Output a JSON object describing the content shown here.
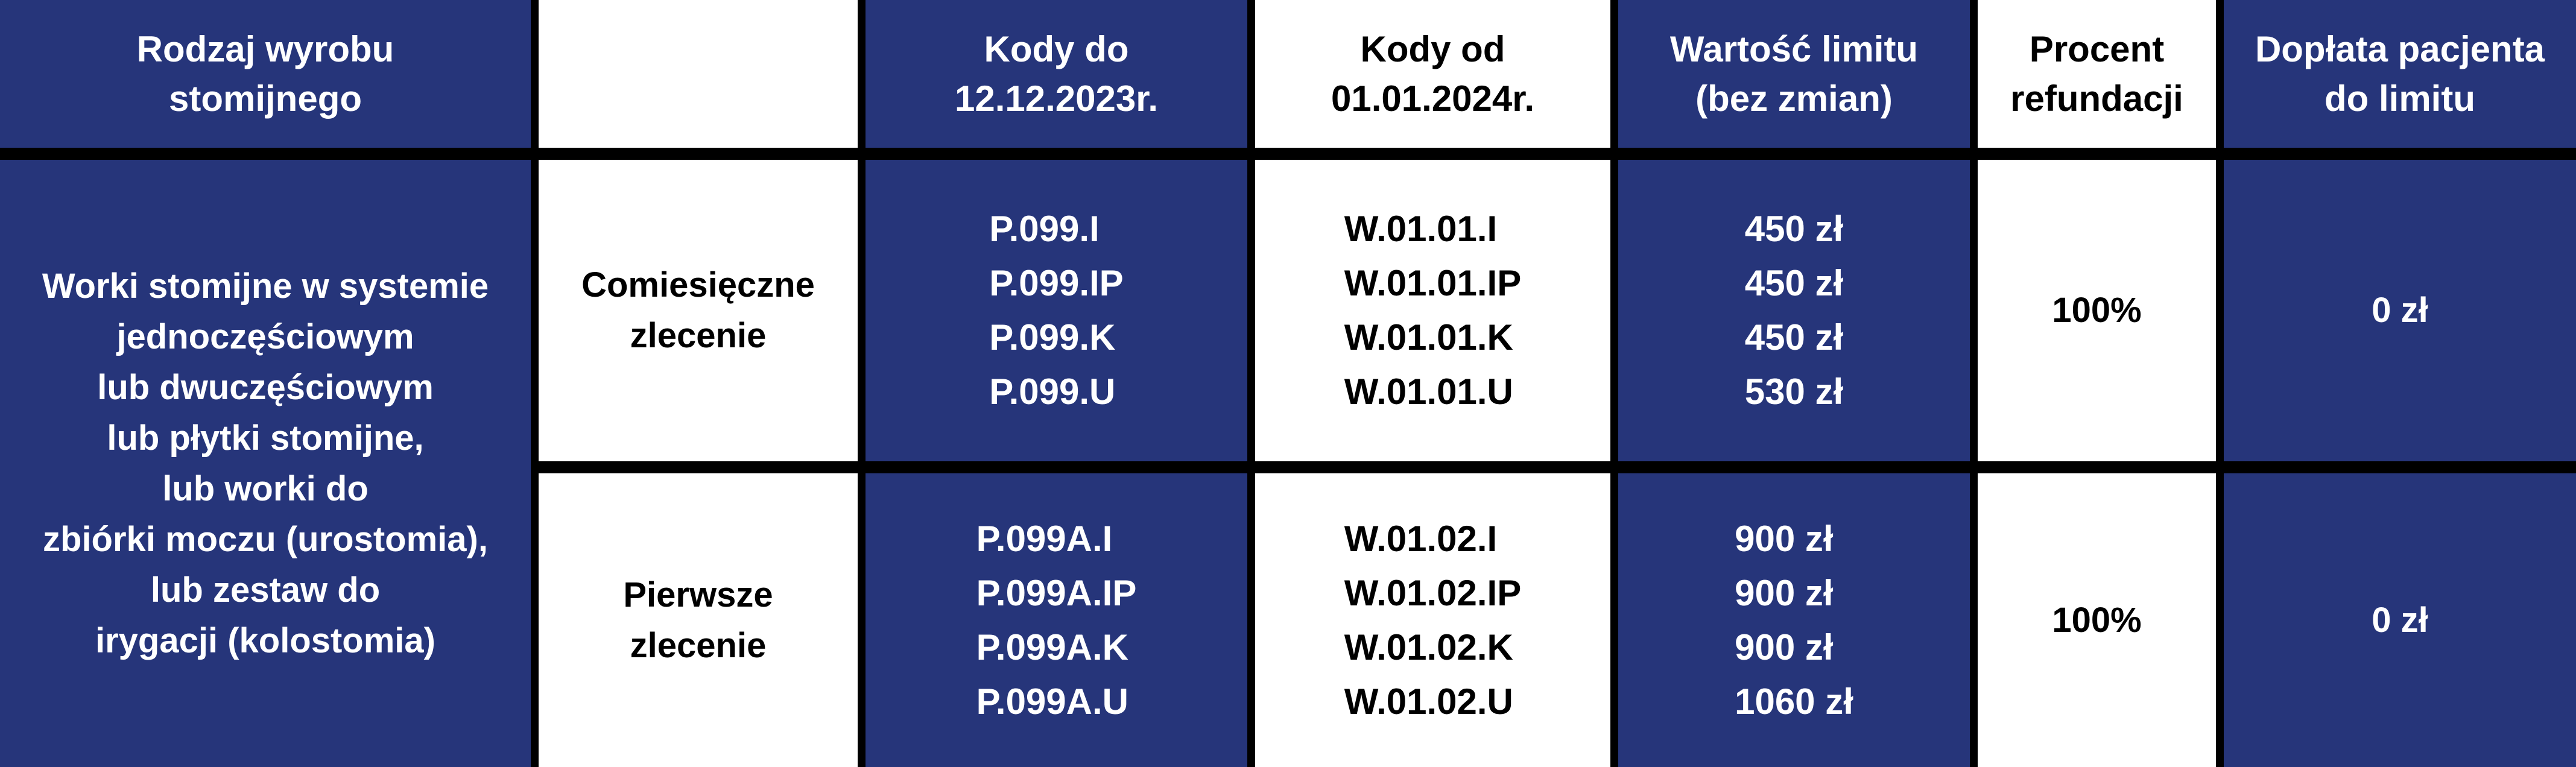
{
  "header": {
    "col1": "Rodzaj wyrobu\nstomijnego",
    "col2": "",
    "col3": "Kody do\n12.12.2023r.",
    "col4": "Kody od\n01.01.2024r.",
    "col5": "Wartość limitu\n(bez zmian)",
    "col6": "Procent\nrefundacji",
    "col7": "Dopłata pacjenta\ndo limitu"
  },
  "product_type": "Worki stomijne w systemie\njednoczęściowym\nlub dwuczęściowym\nlub płytki stomijne,\nlub worki do\nzbiórki moczu (urostomia),\nlub zestaw do\nirygacji (kolostomia)",
  "rows": [
    {
      "order": "Comiesięczne\nzlecenie",
      "codes_old": [
        "P.099.I",
        "P.099.IP",
        "P.099.K",
        "P.099.U"
      ],
      "codes_new": [
        "W.01.01.I",
        "W.01.01.IP",
        "W.01.01.K",
        "W.01.01.U"
      ],
      "limits": [
        "450 zł",
        "450 zł",
        "450 zł",
        "530 zł"
      ],
      "refund": "100%",
      "copay": "0 zł"
    },
    {
      "order": "Pierwsze\nzlecenie",
      "codes_old": [
        "P.099A.I",
        "P.099A.IP",
        "P.099A.K",
        "P.099A.U"
      ],
      "codes_new": [
        "W.01.02.I",
        "W.01.02.IP",
        "W.01.02.K",
        "W.01.02.U"
      ],
      "limits": [
        "900 zł",
        "900 zł",
        "900 zł",
        "1060 zł"
      ],
      "refund": "100%",
      "copay": "0 zł"
    }
  ],
  "colors": {
    "navy": "#26357a",
    "white": "#ffffff",
    "border": "#000000"
  }
}
